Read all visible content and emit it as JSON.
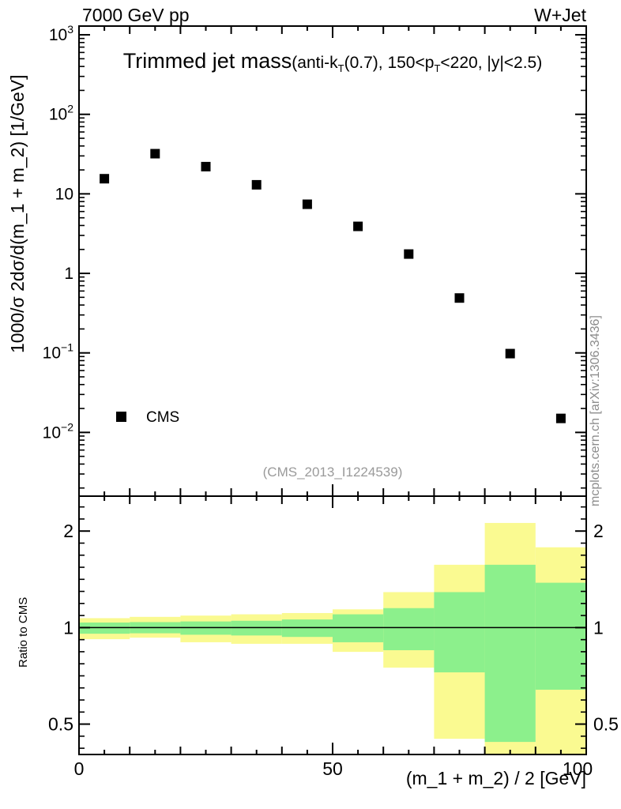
{
  "header": {
    "left": "7000 GeV pp",
    "right": "W+Jet"
  },
  "title": {
    "main": "Trimmed jet mass",
    "detail_parts": [
      "(anti-k",
      "T",
      "(0.7), 150<p",
      "T",
      "<220, |y|<2.5)"
    ]
  },
  "legend": {
    "items": [
      {
        "label": "CMS",
        "marker": "filled-black-square"
      }
    ]
  },
  "watermark": "(CMS_2013_I1224539)",
  "credit": "mcplots.cern.ch [arXiv:1306.3436]",
  "colors": {
    "marker": "#000000",
    "band_outer": "#fafa91",
    "band_inner": "#8cf08c",
    "gray_text": "#9a9a9a",
    "frame": "#000000"
  },
  "axes": {
    "main_y_title": "1000/σ 2dσ/d(m_1 + m_2) [1/GeV]",
    "ratio_y_title": "Ratio to CMS",
    "x_title": "(m_1 + m_2) / 2 [GeV]",
    "main_y_ticks": [
      {
        "base": "10",
        "exp": "3",
        "value": 1000
      },
      {
        "base": "10",
        "exp": "2",
        "value": 100
      },
      {
        "base": "10",
        "exp": "",
        "value": 10
      },
      {
        "base": "1",
        "exp": "",
        "value": 1
      },
      {
        "base": "10",
        "exp": "−1",
        "value": 0.1
      },
      {
        "base": "10",
        "exp": "−2",
        "value": 0.01
      }
    ],
    "ratio_y_ticks": [
      {
        "label": "2",
        "value": 2
      },
      {
        "label": "1",
        "value": 1
      },
      {
        "label": "0.5",
        "value": 0.5
      }
    ],
    "x_ticks": [
      {
        "label": "0",
        "value": 0
      },
      {
        "label": "50",
        "value": 50
      },
      {
        "label": "100",
        "value": 100
      }
    ]
  },
  "chart_data": {
    "type": "scatter",
    "title": "Trimmed jet mass (anti-kT(0.7), 150<pT<220, |y|<2.5)",
    "xlabel": "(m_1 + m_2) / 2 [GeV]",
    "ylabel": "1000/σ 2dσ/d(m_1 + m_2) [1/GeV]",
    "xlim": [
      0,
      100
    ],
    "ylog": true,
    "ylim": [
      0.00158,
      1288
    ],
    "x_minor_step": 5,
    "x_major_step": 50,
    "series": [
      {
        "name": "CMS",
        "marker": "filled-square",
        "color": "#000000",
        "x": [
          5,
          15,
          25,
          35,
          45,
          55,
          65,
          75,
          85,
          95
        ],
        "y": [
          15.5,
          32,
          22,
          13,
          7.4,
          3.9,
          1.75,
          0.49,
          0.098,
          0.015
        ]
      }
    ],
    "ratio_panel": {
      "ylabel": "Ratio to CMS",
      "ylog": true,
      "ylim": [
        0.402,
        2.57
      ],
      "reference_line": 1,
      "bin_edges": [
        0,
        10,
        20,
        30,
        40,
        50,
        60,
        70,
        80,
        90,
        100
      ],
      "bands": [
        {
          "name": "outer-uncertainty",
          "color": "#fafa91",
          "lo": [
            0.92,
            0.93,
            0.9,
            0.89,
            0.89,
            0.84,
            0.75,
            0.45,
            0.4,
            0.4
          ],
          "hi": [
            1.07,
            1.08,
            1.09,
            1.1,
            1.11,
            1.14,
            1.29,
            1.57,
            2.12,
            1.78
          ]
        },
        {
          "name": "inner-uncertainty",
          "color": "#8cf08c",
          "lo": [
            0.957,
            0.96,
            0.95,
            0.945,
            0.935,
            0.9,
            0.85,
            0.725,
            0.44,
            0.64
          ],
          "hi": [
            1.037,
            1.04,
            1.045,
            1.05,
            1.06,
            1.1,
            1.15,
            1.29,
            1.57,
            1.38
          ]
        }
      ]
    }
  }
}
